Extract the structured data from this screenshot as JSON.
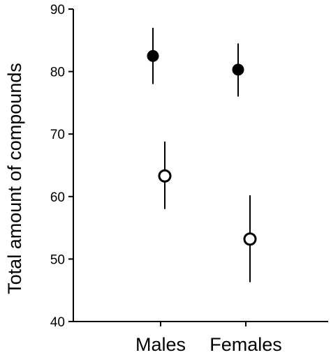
{
  "chart_data": {
    "type": "scatter",
    "title": "",
    "xlabel": "",
    "ylabel": "Total amount of compounds",
    "categories": [
      "Males",
      "Females"
    ],
    "ylim": [
      40,
      90
    ],
    "yticks": [
      40,
      50,
      60,
      70,
      80,
      90
    ],
    "grid": false,
    "legend": "none",
    "series": [
      {
        "marker": "filled-circle",
        "color": "#000000",
        "values": [
          82.5,
          80.3
        ],
        "error_low": [
          78.0,
          76.0
        ],
        "error_high": [
          87.0,
          84.5
        ]
      },
      {
        "marker": "open-circle",
        "color": "#000000",
        "values": [
          63.3,
          53.2
        ],
        "error_low": [
          58.0,
          46.3
        ],
        "error_high": [
          68.8,
          60.2
        ]
      }
    ]
  }
}
